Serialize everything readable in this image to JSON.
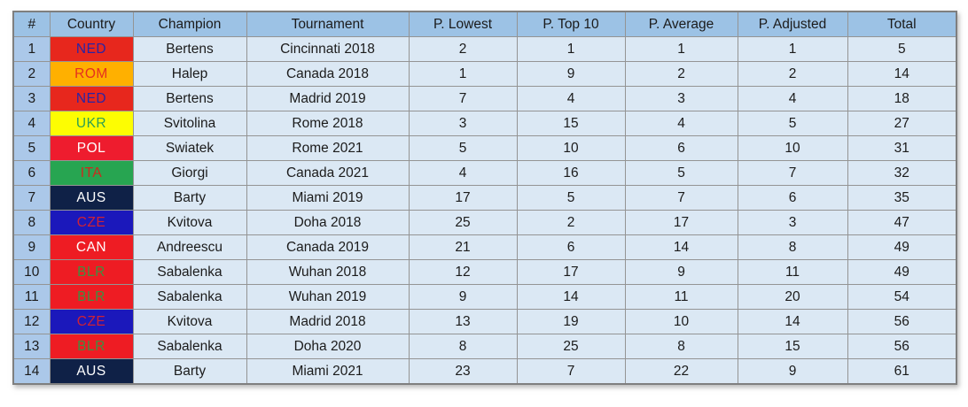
{
  "colors": {
    "header_bg": "#9cc2e5",
    "index_column_bg": "#abc8e9",
    "cell_bg": "#dbe8f4",
    "grid_line": "#949494",
    "outer_border": "#7f7f7f",
    "text": "#1b1b1b"
  },
  "country_styles": {
    "NED": {
      "bg": "#e7271d",
      "fg": "#2a24a5"
    },
    "ROM": {
      "bg": "#ffb000",
      "fg": "#e5301f"
    },
    "UKR": {
      "bg": "#fdfd02",
      "fg": "#2f9e53"
    },
    "POL": {
      "bg": "#ee1c2e",
      "fg": "#ffffff"
    },
    "ITA": {
      "bg": "#27a551",
      "fg": "#cd2a1e"
    },
    "AUS": {
      "bg": "#0f2147",
      "fg": "#ffffff"
    },
    "CZE": {
      "bg": "#1b18bb",
      "fg": "#cf2135"
    },
    "CAN": {
      "bg": "#ee1c23",
      "fg": "#ffffff"
    },
    "BLR": {
      "bg": "#ee1c23",
      "fg": "#3f8f41"
    }
  },
  "chart_data": {
    "type": "table",
    "title": "",
    "columns": [
      "#",
      "Country",
      "Champion",
      "Tournament",
      "P. Lowest",
      "P. Top 10",
      "P. Average",
      "P. Adjusted",
      "Total"
    ],
    "rows": [
      {
        "rank": "1",
        "country": "NED",
        "champion": "Bertens",
        "tournament": "Cincinnati 2018",
        "p_lowest": "2",
        "p_top10": "1",
        "p_average": "1",
        "p_adjusted": "1",
        "total": "5"
      },
      {
        "rank": "2",
        "country": "ROM",
        "champion": "Halep",
        "tournament": "Canada 2018",
        "p_lowest": "1",
        "p_top10": "9",
        "p_average": "2",
        "p_adjusted": "2",
        "total": "14"
      },
      {
        "rank": "3",
        "country": "NED",
        "champion": "Bertens",
        "tournament": "Madrid 2019",
        "p_lowest": "7",
        "p_top10": "4",
        "p_average": "3",
        "p_adjusted": "4",
        "total": "18"
      },
      {
        "rank": "4",
        "country": "UKR",
        "champion": "Svitolina",
        "tournament": "Rome 2018",
        "p_lowest": "3",
        "p_top10": "15",
        "p_average": "4",
        "p_adjusted": "5",
        "total": "27"
      },
      {
        "rank": "5",
        "country": "POL",
        "champion": "Swiatek",
        "tournament": "Rome 2021",
        "p_lowest": "5",
        "p_top10": "10",
        "p_average": "6",
        "p_adjusted": "10",
        "total": "31"
      },
      {
        "rank": "6",
        "country": "ITA",
        "champion": "Giorgi",
        "tournament": "Canada 2021",
        "p_lowest": "4",
        "p_top10": "16",
        "p_average": "5",
        "p_adjusted": "7",
        "total": "32"
      },
      {
        "rank": "7",
        "country": "AUS",
        "champion": "Barty",
        "tournament": "Miami 2019",
        "p_lowest": "17",
        "p_top10": "5",
        "p_average": "7",
        "p_adjusted": "6",
        "total": "35"
      },
      {
        "rank": "8",
        "country": "CZE",
        "champion": "Kvitova",
        "tournament": "Doha 2018",
        "p_lowest": "25",
        "p_top10": "2",
        "p_average": "17",
        "p_adjusted": "3",
        "total": "47"
      },
      {
        "rank": "9",
        "country": "CAN",
        "champion": "Andreescu",
        "tournament": "Canada 2019",
        "p_lowest": "21",
        "p_top10": "6",
        "p_average": "14",
        "p_adjusted": "8",
        "total": "49"
      },
      {
        "rank": "10",
        "country": "BLR",
        "champion": "Sabalenka",
        "tournament": "Wuhan 2018",
        "p_lowest": "12",
        "p_top10": "17",
        "p_average": "9",
        "p_adjusted": "11",
        "total": "49"
      },
      {
        "rank": "11",
        "country": "BLR",
        "champion": "Sabalenka",
        "tournament": "Wuhan 2019",
        "p_lowest": "9",
        "p_top10": "14",
        "p_average": "11",
        "p_adjusted": "20",
        "total": "54"
      },
      {
        "rank": "12",
        "country": "CZE",
        "champion": "Kvitova",
        "tournament": "Madrid 2018",
        "p_lowest": "13",
        "p_top10": "19",
        "p_average": "10",
        "p_adjusted": "14",
        "total": "56"
      },
      {
        "rank": "13",
        "country": "BLR",
        "champion": "Sabalenka",
        "tournament": "Doha 2020",
        "p_lowest": "8",
        "p_top10": "25",
        "p_average": "8",
        "p_adjusted": "15",
        "total": "56"
      },
      {
        "rank": "14",
        "country": "AUS",
        "champion": "Barty",
        "tournament": "Miami 2021",
        "p_lowest": "23",
        "p_top10": "7",
        "p_average": "22",
        "p_adjusted": "9",
        "total": "61"
      }
    ],
    "layout_hints": {
      "grid": true,
      "all_cells_centered": true,
      "country_shown_as_colored_flag_badge": true
    }
  }
}
